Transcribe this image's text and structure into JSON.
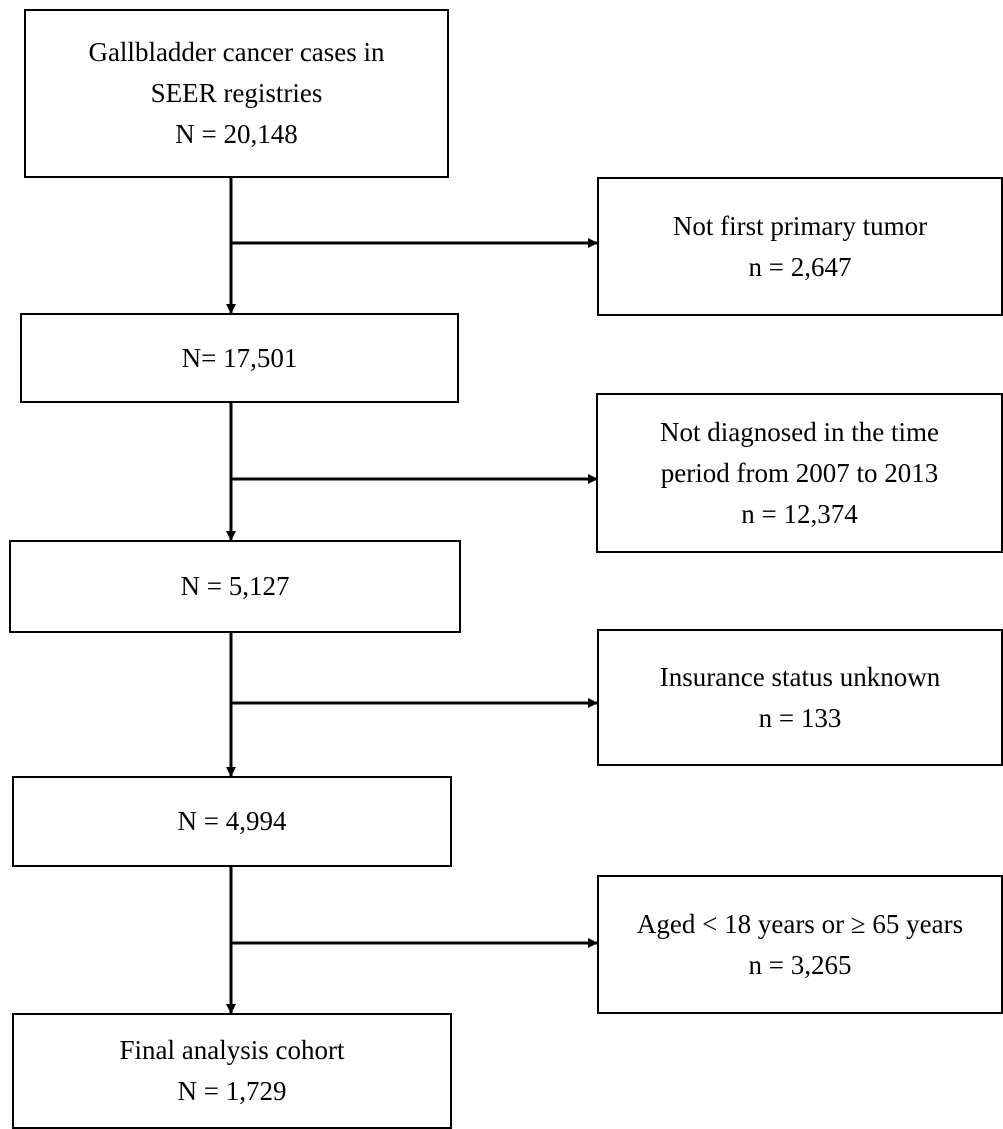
{
  "flowchart": {
    "main": [
      {
        "lines": [
          "Gallbladder cancer cases in",
          "SEER registries",
          "N = 20,148"
        ]
      },
      {
        "lines": [
          "N= 17,501"
        ]
      },
      {
        "lines": [
          "N = 5,127"
        ]
      },
      {
        "lines": [
          "N = 4,994"
        ]
      },
      {
        "lines": [
          "Final analysis cohort",
          "N = 1,729"
        ]
      }
    ],
    "exclusions": [
      {
        "lines": [
          "Not first primary tumor",
          "n = 2,647"
        ]
      },
      {
        "lines": [
          "Not diagnosed in the time",
          "period from 2007 to 2013",
          "n = 12,374"
        ]
      },
      {
        "lines": [
          "Insurance status unknown",
          "n = 133"
        ]
      },
      {
        "lines": [
          "Aged < 18 years or ≥ 65 years",
          "n = 3,265"
        ]
      }
    ]
  }
}
